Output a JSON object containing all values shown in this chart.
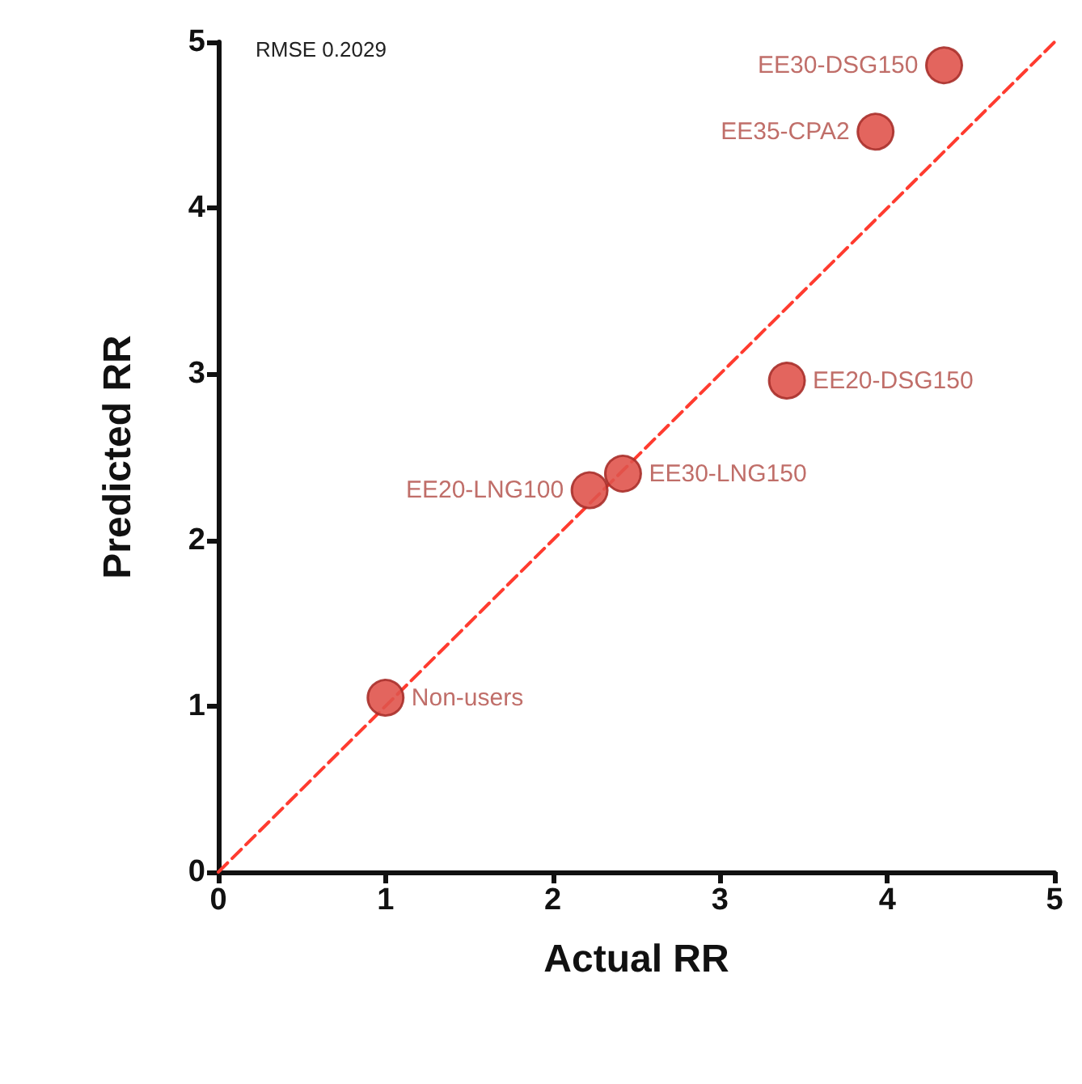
{
  "chart_data": {
    "type": "scatter",
    "xlabel": "Actual RR",
    "ylabel": "Predicted RR",
    "xlim": [
      0,
      5
    ],
    "ylim": [
      0,
      5
    ],
    "xticks": [
      0,
      1,
      2,
      3,
      4,
      5
    ],
    "yticks": [
      0,
      1,
      2,
      3,
      4,
      5
    ],
    "grid": false,
    "marker": "circle",
    "series": [
      {
        "color": "#e0544c",
        "x": [
          1.0,
          2.22,
          2.42,
          3.4,
          3.93,
          4.34
        ],
        "values": [
          1.05,
          2.3,
          2.4,
          2.96,
          4.46,
          4.86
        ]
      },
      {
        "type": "line",
        "color": "#ff3b2f",
        "line_style": "dashed",
        "marker": "none",
        "x": [
          0,
          5
        ],
        "values": [
          0,
          5
        ]
      }
    ],
    "annotations": [
      "RMSE 0.2029",
      {
        "text": "Non-users",
        "x": 1.0,
        "y": 1.05
      },
      {
        "text": "EE20-LNG100",
        "x": 2.22,
        "y": 2.3
      },
      {
        "text": "EE30-LNG150",
        "x": 2.42,
        "y": 2.4
      },
      {
        "text": "EE20-DSG150",
        "x": 3.4,
        "y": 2.96
      },
      {
        "text": "EE35-CPA2",
        "x": 3.93,
        "y": 4.46
      },
      {
        "text": "EE30-DSG150",
        "x": 4.34,
        "y": 4.86
      }
    ]
  }
}
